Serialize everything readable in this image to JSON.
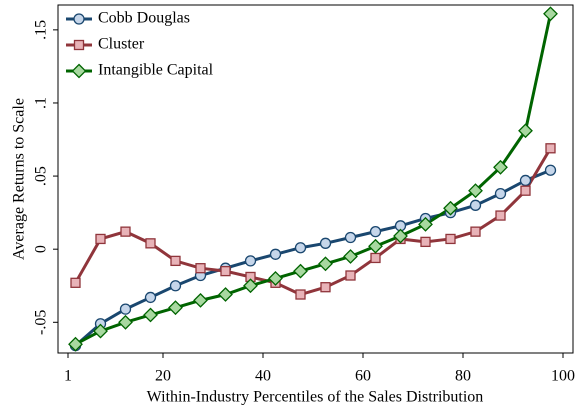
{
  "chart_data": {
    "type": "line",
    "xlabel": "Within-Industry Percentiles of the Sales Distribution",
    "ylabel": "Average Returns to Scale",
    "x": [
      2.5,
      7.5,
      12.5,
      17.5,
      22.5,
      27.5,
      32.5,
      37.5,
      42.5,
      47.5,
      52.5,
      57.5,
      62.5,
      67.5,
      72.5,
      77.5,
      82.5,
      87.5,
      92.5,
      97.5
    ],
    "series": [
      {
        "name": "Cobb Douglas",
        "color": "#1a476f",
        "marker_color": "#c6d6ea",
        "marker": "circle",
        "values": [
          -0.066,
          -0.051,
          -0.041,
          -0.033,
          -0.025,
          -0.018,
          -0.013,
          -0.008,
          -0.0035,
          0.001,
          0.004,
          0.008,
          0.012,
          0.016,
          0.021,
          0.025,
          0.03,
          0.038,
          0.047,
          0.054
        ]
      },
      {
        "name": "Cluster",
        "color": "#90353b",
        "marker_color": "#e8b3b8",
        "marker": "square",
        "values": [
          -0.023,
          0.007,
          0.012,
          0.004,
          -0.008,
          -0.013,
          -0.015,
          -0.019,
          -0.023,
          -0.031,
          -0.026,
          -0.018,
          -0.006,
          0.007,
          0.005,
          0.007,
          0.012,
          0.023,
          0.04,
          0.069
        ]
      },
      {
        "name": "Intangible Capital",
        "color": "#006400",
        "marker_color": "#a8d8a0",
        "marker": "diamond",
        "values": [
          -0.065,
          -0.056,
          -0.05,
          -0.045,
          -0.04,
          -0.035,
          -0.031,
          -0.025,
          -0.02,
          -0.015,
          -0.01,
          -0.005,
          0.002,
          0.009,
          0.017,
          0.028,
          0.04,
          0.056,
          0.081,
          0.161
        ]
      }
    ],
    "xlim": [
      -1,
      102
    ],
    "xticks": [
      1,
      20,
      40,
      60,
      80,
      100
    ],
    "ylim": [
      -0.071,
      0.167
    ],
    "yticks": [
      {
        "value": -0.05,
        "label": "-.05"
      },
      0,
      {
        "value": 0.05,
        "label": ".05"
      },
      {
        "value": 0.1,
        "label": ".1"
      },
      {
        "value": 0.15,
        "label": ".15"
      }
    ],
    "legend": "upper left",
    "grid": false
  }
}
